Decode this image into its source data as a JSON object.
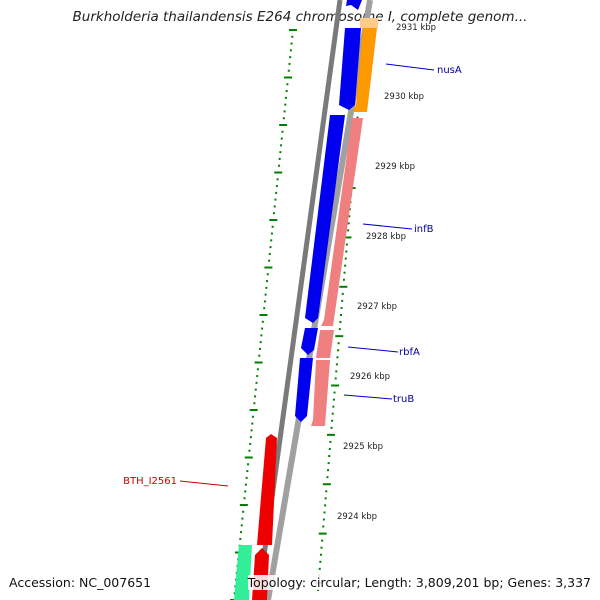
{
  "title": "Burkholderia thailandensis E264 chromosome I, complete genom...",
  "footer": {
    "accession": "Accession: NC_007651",
    "summary": "Topology: circular; Length: 3,809,201 bp; Genes: 3,337"
  },
  "colors": {
    "backbone": "#808080",
    "forward_gene": "#0000ee",
    "reverse_gene": "#f08080",
    "nusA_gene": "#ff9900",
    "red_gene": "#ee0000",
    "green_gene": "#33ee99",
    "ticks": "#008000",
    "label_blue": "#000099",
    "label_red": "#cc0000"
  },
  "scale_labels": [
    {
      "text": "2931 kbp",
      "kbp": 2931
    },
    {
      "text": "2930 kbp",
      "kbp": 2930
    },
    {
      "text": "2929 kbp",
      "kbp": 2929
    },
    {
      "text": "2928 kbp",
      "kbp": 2928
    },
    {
      "text": "2927 kbp",
      "kbp": 2927
    },
    {
      "text": "2926 kbp",
      "kbp": 2926
    },
    {
      "text": "2925 kbp",
      "kbp": 2925
    },
    {
      "text": "2924 kbp",
      "kbp": 2924
    }
  ],
  "gene_labels": [
    {
      "name": "nusA",
      "color": "#000099"
    },
    {
      "name": "infB",
      "color": "#000099"
    },
    {
      "name": "rbfA",
      "color": "#000099"
    },
    {
      "name": "truB",
      "color": "#000099"
    },
    {
      "name": "BTH_I2561",
      "color": "#cc0000"
    }
  ]
}
